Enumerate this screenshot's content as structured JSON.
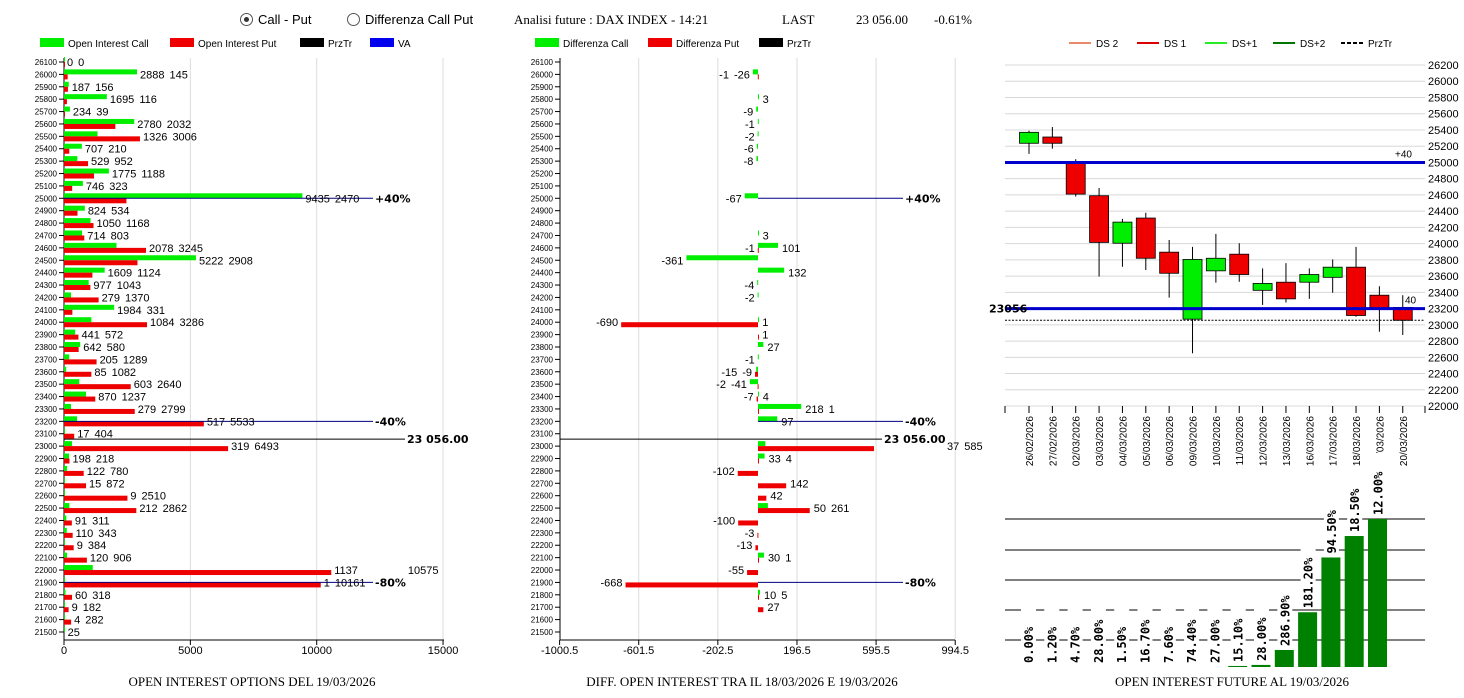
{
  "header": {
    "radio_call_put": "Call - Put",
    "radio_diff": "Differenza Call Put",
    "selected": "Call - Put",
    "analysis_title": "Analisi future : DAX INDEX - 14:21",
    "last_label": "LAST",
    "last_value": "23 056.00",
    "change": "-0.61%"
  },
  "colors": {
    "call": "#00ee00",
    "put": "#ee0000",
    "prztr": "#000000",
    "va": "#0000cc",
    "future_bar": "#008000",
    "navy_line": "#000080"
  },
  "legends": {
    "left": [
      {
        "label": "Open Interest Call",
        "color": "#00ee00"
      },
      {
        "label": "Open Interest Put",
        "color": "#ee0000"
      },
      {
        "label": "PrzTr",
        "color": "#000000"
      },
      {
        "label": "VA",
        "color": "#0000ee"
      }
    ],
    "middle": [
      {
        "label": "Differenza Call",
        "color": "#00ee00"
      },
      {
        "label": "Differenza Put",
        "color": "#ee0000"
      },
      {
        "label": "PrzTr",
        "color": "#000000"
      }
    ],
    "right": [
      {
        "label": "DS 2",
        "color": "#e8896a",
        "dash": false
      },
      {
        "label": "DS 1",
        "color": "#dd0000",
        "dash": false
      },
      {
        "label": "DS+1",
        "color": "#22ee22",
        "dash": false
      },
      {
        "label": "DS+2",
        "color": "#007700",
        "dash": false
      },
      {
        "label": "PrzTr",
        "color": "#000000",
        "dash": true
      }
    ]
  },
  "titles": {
    "left": "OPEN INTEREST OPTIONS DEL 19/03/2026",
    "middle": "DIFF. OPEN INTEREST TRA IL 18/03/2026 E 19/03/2026",
    "right": "OPEN INTEREST FUTURE AL 19/03/2026"
  },
  "chart_data": [
    {
      "type": "bar",
      "orientation": "horizontal",
      "title": "OPEN INTEREST OPTIONS DEL 19/03/2026",
      "xlim": [
        0,
        15000
      ],
      "xticks": [
        "0",
        "5000",
        "10000",
        "15000"
      ],
      "grid": true,
      "price_line": {
        "value": 23056,
        "label": "23 056.00"
      },
      "levels": [
        {
          "strike": 25000,
          "label": "+40%"
        },
        {
          "strike": 23200,
          "label": "-40%"
        },
        {
          "strike": 21900,
          "label": "-80%"
        }
      ],
      "series_names": [
        "Open Interest Call",
        "Open Interest Put"
      ],
      "rows": [
        {
          "strike": 26100,
          "call": 0,
          "put": 0
        },
        {
          "strike": 26000,
          "call": 2888,
          "put": 145
        },
        {
          "strike": 25900,
          "call": 187,
          "put": 156
        },
        {
          "strike": 25800,
          "call": 1695,
          "put": 116
        },
        {
          "strike": 25700,
          "call": 234,
          "put": 39
        },
        {
          "strike": 25600,
          "call": 2780,
          "put": 2032
        },
        {
          "strike": 25500,
          "call": 1326,
          "put": 3006
        },
        {
          "strike": 25400,
          "call": 707,
          "put": 210
        },
        {
          "strike": 25300,
          "call": 529,
          "put": 952
        },
        {
          "strike": 25200,
          "call": 1775,
          "put": 1188
        },
        {
          "strike": 25100,
          "call": 746,
          "put": 323
        },
        {
          "strike": 25000,
          "call": 9435,
          "put": 2470
        },
        {
          "strike": 24900,
          "call": 824,
          "put": 534
        },
        {
          "strike": 24800,
          "call": 1050,
          "put": 1168
        },
        {
          "strike": 24700,
          "call": 714,
          "put": 803
        },
        {
          "strike": 24600,
          "call": 2078,
          "put": 3245
        },
        {
          "strike": 24500,
          "call": 5222,
          "put": 2908
        },
        {
          "strike": 24400,
          "call": 1609,
          "put": 1124
        },
        {
          "strike": 24300,
          "call": 977,
          "put": 1043
        },
        {
          "strike": 24200,
          "call": 279,
          "put": 1370
        },
        {
          "strike": 24100,
          "call": 1984,
          "put": 331
        },
        {
          "strike": 24000,
          "call": 1084,
          "put": 3286
        },
        {
          "strike": 23900,
          "call": 441,
          "put": 572
        },
        {
          "strike": 23800,
          "call": 642,
          "put": 580
        },
        {
          "strike": 23700,
          "call": 205,
          "put": 1289
        },
        {
          "strike": 23600,
          "call": 85,
          "put": 1082
        },
        {
          "strike": 23500,
          "call": 603,
          "put": 2640
        },
        {
          "strike": 23400,
          "call": 870,
          "put": 1237
        },
        {
          "strike": 23300,
          "call": 279,
          "put": 2799
        },
        {
          "strike": 23200,
          "call": 517,
          "put": 5533
        },
        {
          "strike": 23100,
          "call": 17,
          "put": 404
        },
        {
          "strike": 23000,
          "call": 319,
          "put": 6493
        },
        {
          "strike": 22900,
          "call": 198,
          "put": 218
        },
        {
          "strike": 22800,
          "call": 122,
          "put": 780
        },
        {
          "strike": 22700,
          "call": 15,
          "put": 872
        },
        {
          "strike": 22600,
          "call": 9,
          "put": 2510
        },
        {
          "strike": 22500,
          "call": 212,
          "put": 2862
        },
        {
          "strike": 22400,
          "call": 91,
          "put": 311
        },
        {
          "strike": 22300,
          "call": 110,
          "put": 343
        },
        {
          "strike": 22200,
          "call": 9,
          "put": 384
        },
        {
          "strike": 22100,
          "call": 120,
          "put": 906
        },
        {
          "strike": 22000,
          "call": 1137,
          "put": 10575
        },
        {
          "strike": 21900,
          "call": 1,
          "put": 10161
        },
        {
          "strike": 21800,
          "call": 60,
          "put": 318
        },
        {
          "strike": 21700,
          "call": 9,
          "put": 182
        },
        {
          "strike": 21600,
          "call": 4,
          "put": 282
        },
        {
          "strike": 21500,
          "call": 25,
          "put": null
        }
      ]
    },
    {
      "type": "bar",
      "orientation": "horizontal",
      "title": "DIFF. OPEN INTEREST TRA IL 18/03/2026 E 19/03/2026",
      "xlim": [
        -1000.5,
        994.5
      ],
      "xticks": [
        "-1000.5",
        "-601.5",
        "-202.5",
        "196.5",
        "595.5",
        "994.5"
      ],
      "grid": true,
      "price_line": {
        "value": 23056,
        "label": "23 056.00"
      },
      "levels": [
        {
          "strike": 25000,
          "label": "+40%"
        },
        {
          "strike": 23200,
          "label": "-40%"
        },
        {
          "strike": 21900,
          "label": "-80%"
        }
      ],
      "series_names": [
        "Differenza Call",
        "Differenza Put"
      ],
      "strike_ticks": [
        26100,
        26000,
        25900,
        25800,
        25700,
        25600,
        25500,
        25400,
        25300,
        25200,
        25100,
        25000,
        24900,
        24800,
        24700,
        24600,
        24500,
        24400,
        24300,
        24200,
        24100,
        24000,
        23900,
        23800,
        23700,
        23600,
        23500,
        23400,
        23300,
        23200,
        23100,
        23000,
        22900,
        22800,
        22700,
        22600,
        22500,
        22400,
        22300,
        22200,
        22100,
        22000,
        21900,
        21800,
        21700,
        21600,
        21500
      ],
      "rows": [
        {
          "strike": 26000,
          "call": -26,
          "put": -1
        },
        {
          "strike": 25800,
          "call": 3,
          "put": null
        },
        {
          "strike": 25700,
          "call": -9,
          "put": null
        },
        {
          "strike": 25600,
          "call": -1,
          "put": null
        },
        {
          "strike": 25500,
          "call": -2,
          "put": null
        },
        {
          "strike": 25400,
          "call": -6,
          "put": null
        },
        {
          "strike": 25300,
          "call": -8,
          "put": null
        },
        {
          "strike": 25000,
          "call": -67,
          "put": null
        },
        {
          "strike": 24700,
          "call": 3,
          "put": null
        },
        {
          "strike": 24600,
          "call": 101,
          "put": -1
        },
        {
          "strike": 24500,
          "call": -361,
          "put": null
        },
        {
          "strike": 24400,
          "call": 132,
          "put": null
        },
        {
          "strike": 24300,
          "call": -4,
          "put": null
        },
        {
          "strike": 24200,
          "call": -2,
          "put": null
        },
        {
          "strike": 24000,
          "call": 1,
          "put": -690
        },
        {
          "strike": 23900,
          "call": null,
          "put": 1
        },
        {
          "strike": 23800,
          "call": 27,
          "put": null
        },
        {
          "strike": 23700,
          "call": -1,
          "put": null
        },
        {
          "strike": 23600,
          "call": -9,
          "put": -15
        },
        {
          "strike": 23500,
          "call": -41,
          "put": -2
        },
        {
          "strike": 23400,
          "call": 4,
          "put": -7
        },
        {
          "strike": 23300,
          "call": 218,
          "put": 1
        },
        {
          "strike": 23200,
          "call": 97,
          "put": null
        },
        {
          "strike": 23000,
          "call": 37,
          "put": 585
        },
        {
          "strike": 22900,
          "call": 33,
          "put": 4
        },
        {
          "strike": 22800,
          "call": null,
          "put": -102
        },
        {
          "strike": 22700,
          "call": null,
          "put": 142
        },
        {
          "strike": 22600,
          "call": null,
          "put": 42
        },
        {
          "strike": 22500,
          "call": 50,
          "put": 261
        },
        {
          "strike": 22400,
          "call": null,
          "put": -100
        },
        {
          "strike": 22300,
          "call": null,
          "put": -3
        },
        {
          "strike": 22200,
          "call": null,
          "put": -13
        },
        {
          "strike": 22100,
          "call": 30,
          "put": 1
        },
        {
          "strike": 22000,
          "call": null,
          "put": -55
        },
        {
          "strike": 21900,
          "call": null,
          "put": -668
        },
        {
          "strike": 21800,
          "call": 10,
          "put": 5
        },
        {
          "strike": 21700,
          "call": null,
          "put": 27
        }
      ]
    },
    {
      "type": "candlestick",
      "ylim": [
        22000,
        26200
      ],
      "yticks": [
        26200,
        26000,
        25800,
        25600,
        25400,
        25200,
        25000,
        24800,
        24600,
        24400,
        24200,
        24000,
        23800,
        23600,
        23400,
        23200,
        23000,
        22800,
        22600,
        22400,
        22200,
        22000
      ],
      "grid": true,
      "legend": "top",
      "levels": [
        {
          "value": 25000,
          "label": "+40"
        },
        {
          "value": 23200,
          "label": "40"
        }
      ],
      "price_label": "23056",
      "prztr": 23056,
      "candles": [
        {
          "date": "26/02/2026",
          "open": 25236,
          "high": 25390,
          "low": 25105,
          "close": 25371
        },
        {
          "date": "27/02/2026",
          "open": 25313,
          "high": 25436,
          "low": 25170,
          "close": 25236
        },
        {
          "date": "02/03/2026",
          "open": 25000,
          "high": 25040,
          "low": 24580,
          "close": 24610
        },
        {
          "date": "03/03/2026",
          "open": 24590,
          "high": 24685,
          "low": 23595,
          "close": 24015
        },
        {
          "date": "04/03/2026",
          "open": 24005,
          "high": 24305,
          "low": 23715,
          "close": 24265
        },
        {
          "date": "05/03/2026",
          "open": 24315,
          "high": 24380,
          "low": 23675,
          "close": 23820
        },
        {
          "date": "06/03/2026",
          "open": 23895,
          "high": 24045,
          "low": 23335,
          "close": 23635
        },
        {
          "date": "09/03/2026",
          "open": 23070,
          "high": 23960,
          "low": 22650,
          "close": 23805
        },
        {
          "date": "10/03/2026",
          "open": 23665,
          "high": 24120,
          "low": 23520,
          "close": 23820
        },
        {
          "date": "11/03/2026",
          "open": 23870,
          "high": 24005,
          "low": 23530,
          "close": 23620
        },
        {
          "date": "12/03/2026",
          "open": 23425,
          "high": 23695,
          "low": 23245,
          "close": 23510
        },
        {
          "date": "13/03/2026",
          "open": 23525,
          "high": 23760,
          "low": 23275,
          "close": 23320
        },
        {
          "date": "16/03/2026",
          "open": 23525,
          "high": 23695,
          "low": 23320,
          "close": 23620
        },
        {
          "date": "17/03/2026",
          "open": 23585,
          "high": 23805,
          "low": 23395,
          "close": 23710
        },
        {
          "date": "18/03/2026",
          "open": 23710,
          "high": 23960,
          "low": 23100,
          "close": 23115
        },
        {
          "date": "9/03/2026",
          "open": 23365,
          "high": 23475,
          "low": 22915,
          "close": 23190
        },
        {
          "date": "20/03/2026",
          "open": 23215,
          "high": 23365,
          "low": 22875,
          "close": 23056
        }
      ]
    },
    {
      "type": "bar",
      "title": "OPEN INTEREST FUTURE AL 19/03/2026",
      "grid": true,
      "labels": [
        "0.00%",
        "1.20%",
        "4.70%",
        "28.00%",
        "1.50%",
        "16.70%",
        "7.60%",
        "74.40%",
        "27.00%",
        "15.10%",
        "28.00%",
        "286.90%",
        "181.20%",
        "94.50%",
        "18.50%",
        "12.00%"
      ],
      "relative_values": [
        0,
        0,
        0,
        0,
        0,
        0,
        0,
        0,
        0,
        0.007,
        0.014,
        0.115,
        0.37,
        0.74,
        0.885,
        1.0
      ]
    }
  ]
}
